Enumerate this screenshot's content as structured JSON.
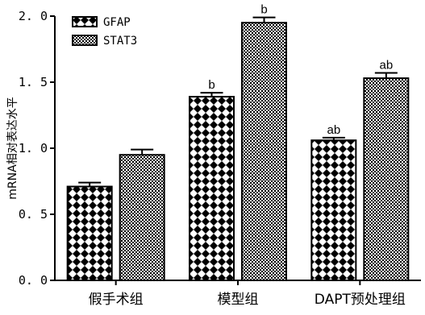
{
  "chart_data": {
    "type": "bar",
    "categories": [
      "假手术组",
      "模型组",
      "DAPT预处理组"
    ],
    "series": [
      {
        "name": "GFAP",
        "values": [
          0.71,
          1.39,
          1.06
        ],
        "errors": [
          0.03,
          0.03,
          0.02
        ],
        "annotations": [
          "",
          "b",
          "ab"
        ]
      },
      {
        "name": "STAT3",
        "values": [
          0.95,
          1.95,
          1.53
        ],
        "errors": [
          0.04,
          0.04,
          0.04
        ],
        "annotations": [
          "",
          "b",
          "ab"
        ]
      }
    ],
    "title": "",
    "xlabel": "",
    "ylabel": "mRNA相对表达水平",
    "ylim": [
      0,
      2.0
    ],
    "yticks": [
      "0. 0",
      "0. 5",
      "1. 0",
      "1. 5",
      "2. 0"
    ],
    "ytick_values": [
      0,
      0.5,
      1.0,
      1.5,
      2.0
    ],
    "legend_position": "top-left",
    "grid": false
  }
}
